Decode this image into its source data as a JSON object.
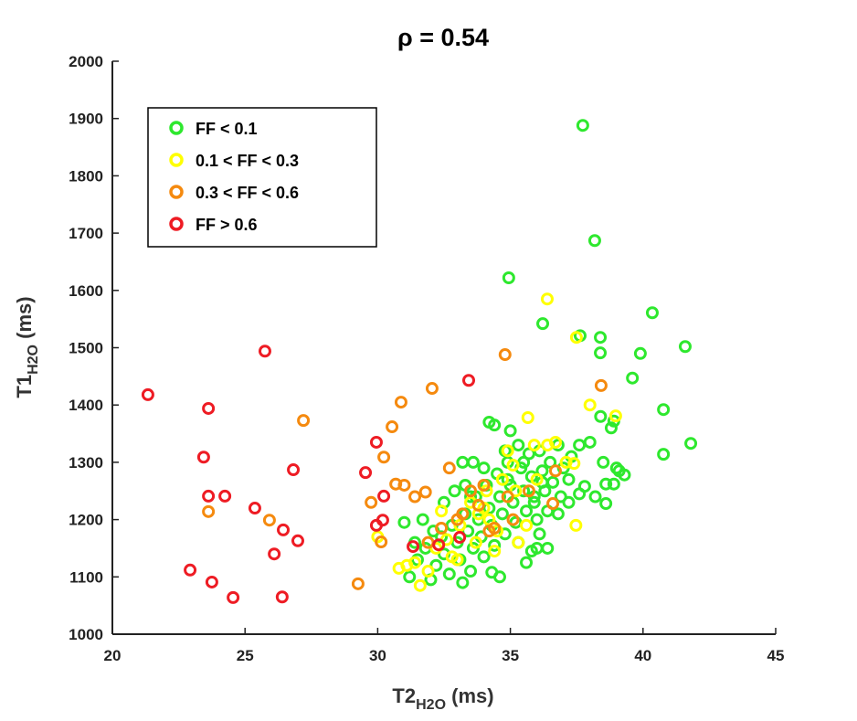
{
  "chart_data": {
    "type": "scatter",
    "title": "ρ = 0.54",
    "xlabel": {
      "main": "T2",
      "sub": "H2O",
      "unit": " (ms)"
    },
    "ylabel": {
      "main": "T1",
      "sub": "H2O",
      "unit": " (ms)"
    },
    "xlim": [
      20,
      45
    ],
    "ylim": [
      1000,
      2000
    ],
    "xticks": [
      "20",
      "25",
      "30",
      "35",
      "40",
      "45"
    ],
    "yticks": [
      "1000",
      "1100",
      "1200",
      "1300",
      "1400",
      "1500",
      "1600",
      "1700",
      "1800",
      "1900",
      "2000"
    ],
    "legend_position": "top-left",
    "grid": false,
    "series": [
      {
        "name": "FF < 0.1",
        "color": "#2ee82e",
        "points": [
          [
            37.73,
            1888
          ],
          [
            38.18,
            1687
          ],
          [
            34.94,
            1622
          ],
          [
            36.22,
            1542
          ],
          [
            37.63,
            1521
          ],
          [
            38.39,
            1518
          ],
          [
            38.39,
            1491
          ],
          [
            40.35,
            1561
          ],
          [
            41.59,
            1502
          ],
          [
            39.9,
            1490
          ],
          [
            39.6,
            1447
          ],
          [
            40.77,
            1392
          ],
          [
            41.8,
            1333
          ],
          [
            40.77,
            1314
          ],
          [
            31.2,
            1100
          ],
          [
            31.5,
            1130
          ],
          [
            31.8,
            1150
          ],
          [
            32.0,
            1095
          ],
          [
            32.2,
            1120
          ],
          [
            32.4,
            1170
          ],
          [
            32.5,
            1140
          ],
          [
            32.7,
            1105
          ],
          [
            32.8,
            1190
          ],
          [
            33.0,
            1160
          ],
          [
            33.1,
            1130
          ],
          [
            33.3,
            1210
          ],
          [
            33.4,
            1180
          ],
          [
            33.5,
            1110
          ],
          [
            33.6,
            1150
          ],
          [
            33.7,
            1240
          ],
          [
            33.8,
            1200
          ],
          [
            33.9,
            1170
          ],
          [
            34.0,
            1135
          ],
          [
            34.1,
            1260
          ],
          [
            34.2,
            1220
          ],
          [
            34.3,
            1190
          ],
          [
            34.4,
            1155
          ],
          [
            34.5,
            1280
          ],
          [
            34.6,
            1240
          ],
          [
            34.7,
            1210
          ],
          [
            34.8,
            1175
          ],
          [
            34.9,
            1300
          ],
          [
            35.0,
            1260
          ],
          [
            35.1,
            1230
          ],
          [
            35.2,
            1195
          ],
          [
            35.3,
            1160
          ],
          [
            35.4,
            1290
          ],
          [
            35.5,
            1250
          ],
          [
            35.6,
            1215
          ],
          [
            35.7,
            1315
          ],
          [
            35.8,
            1275
          ],
          [
            35.9,
            1240
          ],
          [
            36.0,
            1200
          ],
          [
            36.1,
            1320
          ],
          [
            36.2,
            1285
          ],
          [
            36.3,
            1250
          ],
          [
            36.4,
            1215
          ],
          [
            36.5,
            1300
          ],
          [
            36.6,
            1265
          ],
          [
            36.8,
            1330
          ],
          [
            37.0,
            1290
          ],
          [
            37.2,
            1270
          ],
          [
            36.0,
            1150
          ],
          [
            35.6,
            1125
          ],
          [
            34.3,
            1108
          ],
          [
            33.2,
            1090
          ],
          [
            32.1,
            1180
          ],
          [
            31.7,
            1200
          ],
          [
            32.9,
            1250
          ],
          [
            33.6,
            1300
          ],
          [
            34.2,
            1370
          ],
          [
            34.4,
            1365
          ],
          [
            33.2,
            1300
          ],
          [
            35.0,
            1355
          ],
          [
            33.3,
            1260
          ],
          [
            34.8,
            1320
          ],
          [
            35.3,
            1330
          ],
          [
            36.1,
            1175
          ],
          [
            36.4,
            1150
          ],
          [
            35.9,
            1230
          ],
          [
            37.3,
            1310
          ],
          [
            37.6,
            1330
          ],
          [
            38.0,
            1335
          ],
          [
            37.8,
            1258
          ],
          [
            37.6,
            1245
          ],
          [
            38.2,
            1240
          ],
          [
            38.6,
            1228
          ],
          [
            38.6,
            1262
          ],
          [
            39.1,
            1285
          ],
          [
            39.3,
            1278
          ],
          [
            39.0,
            1290
          ],
          [
            38.9,
            1262
          ],
          [
            38.5,
            1300
          ],
          [
            38.8,
            1360
          ],
          [
            38.4,
            1380
          ],
          [
            38.9,
            1372
          ],
          [
            31.0,
            1195
          ],
          [
            31.4,
            1160
          ],
          [
            32.5,
            1230
          ],
          [
            34.6,
            1100
          ],
          [
            35.8,
            1145
          ],
          [
            36.8,
            1210
          ],
          [
            33.5,
            1240
          ],
          [
            34.0,
            1290
          ],
          [
            34.9,
            1270
          ],
          [
            35.5,
            1300
          ],
          [
            36.9,
            1240
          ],
          [
            37.2,
            1230
          ],
          [
            36.2,
            1265
          ]
        ]
      },
      {
        "name": "0.1 < FF < 0.3",
        "color": "#ffff00",
        "points": [
          [
            36.39,
            1585
          ],
          [
            37.49,
            1518
          ],
          [
            35.66,
            1378
          ],
          [
            38.0,
            1400
          ],
          [
            38.97,
            1381
          ],
          [
            37.47,
            1190
          ],
          [
            37.4,
            1298
          ],
          [
            36.7,
            1335
          ],
          [
            30.0,
            1170
          ],
          [
            30.8,
            1115
          ],
          [
            31.1,
            1120
          ],
          [
            31.6,
            1085
          ],
          [
            31.9,
            1110
          ],
          [
            32.2,
            1150
          ],
          [
            32.4,
            1215
          ],
          [
            32.8,
            1135
          ],
          [
            33.1,
            1190
          ],
          [
            33.5,
            1230
          ],
          [
            33.8,
            1210
          ],
          [
            34.0,
            1220
          ],
          [
            34.2,
            1200
          ],
          [
            34.5,
            1180
          ],
          [
            34.7,
            1270
          ],
          [
            34.9,
            1320
          ],
          [
            35.1,
            1295
          ],
          [
            35.3,
            1160
          ],
          [
            35.6,
            1190
          ],
          [
            35.9,
            1330
          ],
          [
            36.4,
            1330
          ],
          [
            37.1,
            1300
          ],
          [
            33.0,
            1130
          ],
          [
            33.7,
            1160
          ],
          [
            34.4,
            1145
          ],
          [
            35.2,
            1250
          ],
          [
            36.0,
            1270
          ],
          [
            32.6,
            1165
          ],
          [
            31.4,
            1125
          ],
          [
            34.1,
            1250
          ]
        ]
      },
      {
        "name": "0.3 < FF < 0.6",
        "color": "#f58a0f",
        "points": [
          [
            23.62,
            1214
          ],
          [
            27.2,
            1373
          ],
          [
            25.92,
            1199
          ],
          [
            29.26,
            1088
          ],
          [
            30.88,
            1405
          ],
          [
            30.54,
            1362
          ],
          [
            30.23,
            1309
          ],
          [
            29.75,
            1230
          ],
          [
            30.13,
            1161
          ],
          [
            30.68,
            1262
          ],
          [
            32.05,
            1429
          ],
          [
            34.8,
            1488
          ],
          [
            38.42,
            1434
          ],
          [
            31.0,
            1260
          ],
          [
            31.4,
            1240
          ],
          [
            31.8,
            1248
          ],
          [
            32.7,
            1290
          ],
          [
            33.2,
            1210
          ],
          [
            33.5,
            1250
          ],
          [
            33.8,
            1225
          ],
          [
            34.0,
            1260
          ],
          [
            34.2,
            1180
          ],
          [
            34.4,
            1185
          ],
          [
            34.9,
            1240
          ],
          [
            35.1,
            1200
          ],
          [
            35.7,
            1250
          ],
          [
            36.6,
            1228
          ],
          [
            36.7,
            1285
          ],
          [
            33.0,
            1200
          ],
          [
            32.4,
            1185
          ],
          [
            31.9,
            1160
          ]
        ]
      },
      {
        "name": "FF > 0.6",
        "color": "#ee1c24",
        "points": [
          [
            21.34,
            1418
          ],
          [
            23.62,
            1394
          ],
          [
            23.44,
            1309
          ],
          [
            23.62,
            1241
          ],
          [
            24.24,
            1241
          ],
          [
            22.93,
            1112
          ],
          [
            23.75,
            1091
          ],
          [
            24.55,
            1064
          ],
          [
            25.37,
            1220
          ],
          [
            26.1,
            1140
          ],
          [
            26.44,
            1182
          ],
          [
            26.82,
            1287
          ],
          [
            26.99,
            1163
          ],
          [
            25.75,
            1494
          ],
          [
            26.4,
            1065
          ],
          [
            29.95,
            1335
          ],
          [
            29.54,
            1282
          ],
          [
            29.95,
            1190
          ],
          [
            33.43,
            1443
          ],
          [
            30.23,
            1241
          ],
          [
            30.19,
            1199
          ],
          [
            31.33,
            1153
          ],
          [
            33.09,
            1169
          ],
          [
            32.3,
            1156
          ]
        ]
      }
    ]
  }
}
